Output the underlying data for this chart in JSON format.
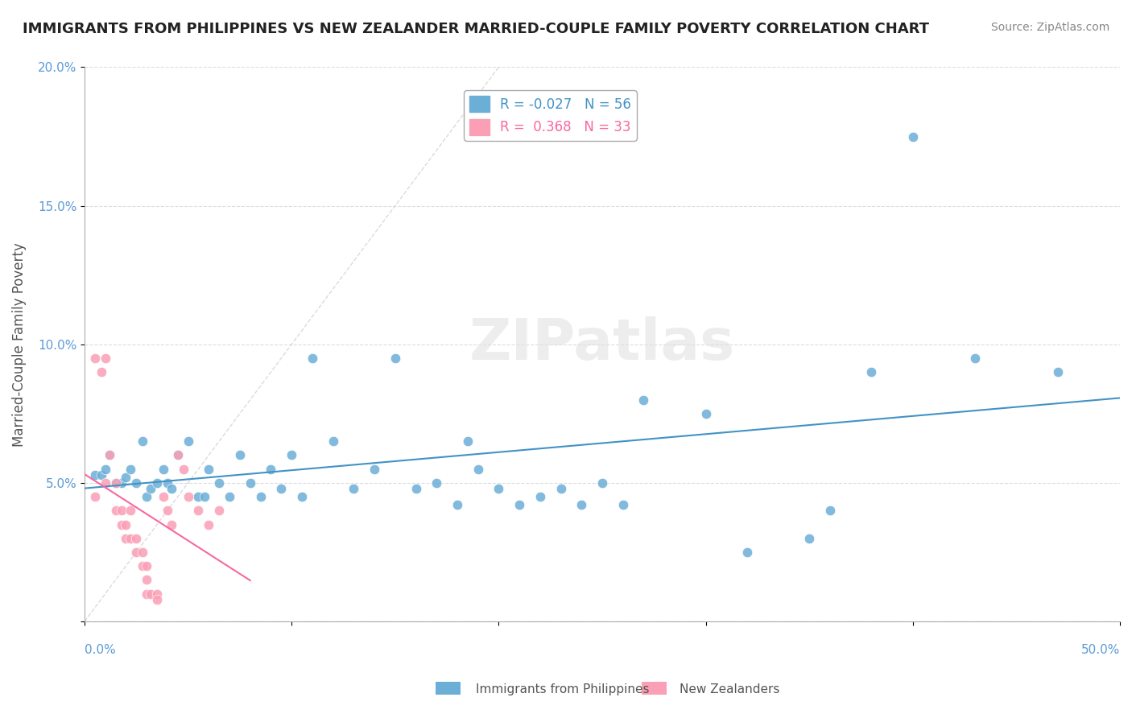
{
  "title": "IMMIGRANTS FROM PHILIPPINES VS NEW ZEALANDER MARRIED-COUPLE FAMILY POVERTY CORRELATION CHART",
  "source": "Source: ZipAtlas.com",
  "ylabel": "Married-Couple Family Poverty",
  "watermark": "ZIPatlas",
  "legend1_label": "Immigrants from Philippines",
  "legend2_label": "New Zealanders",
  "R1": "-0.027",
  "N1": "56",
  "R2": "0.368",
  "N2": "33",
  "blue_color": "#6baed6",
  "pink_color": "#fa9fb5",
  "blue_line_color": "#4292c6",
  "pink_line_color": "#f768a1",
  "blue_scatter": [
    [
      0.005,
      0.053
    ],
    [
      0.008,
      0.053
    ],
    [
      0.01,
      0.055
    ],
    [
      0.012,
      0.06
    ],
    [
      0.015,
      0.05
    ],
    [
      0.018,
      0.05
    ],
    [
      0.02,
      0.052
    ],
    [
      0.022,
      0.055
    ],
    [
      0.025,
      0.05
    ],
    [
      0.028,
      0.065
    ],
    [
      0.03,
      0.045
    ],
    [
      0.032,
      0.048
    ],
    [
      0.035,
      0.05
    ],
    [
      0.038,
      0.055
    ],
    [
      0.04,
      0.05
    ],
    [
      0.042,
      0.048
    ],
    [
      0.045,
      0.06
    ],
    [
      0.05,
      0.065
    ],
    [
      0.055,
      0.045
    ],
    [
      0.058,
      0.045
    ],
    [
      0.06,
      0.055
    ],
    [
      0.065,
      0.05
    ],
    [
      0.07,
      0.045
    ],
    [
      0.075,
      0.06
    ],
    [
      0.08,
      0.05
    ],
    [
      0.085,
      0.045
    ],
    [
      0.09,
      0.055
    ],
    [
      0.095,
      0.048
    ],
    [
      0.1,
      0.06
    ],
    [
      0.105,
      0.045
    ],
    [
      0.11,
      0.095
    ],
    [
      0.12,
      0.065
    ],
    [
      0.13,
      0.048
    ],
    [
      0.14,
      0.055
    ],
    [
      0.15,
      0.095
    ],
    [
      0.16,
      0.048
    ],
    [
      0.17,
      0.05
    ],
    [
      0.18,
      0.042
    ],
    [
      0.185,
      0.065
    ],
    [
      0.19,
      0.055
    ],
    [
      0.2,
      0.048
    ],
    [
      0.21,
      0.042
    ],
    [
      0.22,
      0.045
    ],
    [
      0.23,
      0.048
    ],
    [
      0.24,
      0.042
    ],
    [
      0.25,
      0.05
    ],
    [
      0.26,
      0.042
    ],
    [
      0.27,
      0.08
    ],
    [
      0.3,
      0.075
    ],
    [
      0.32,
      0.025
    ],
    [
      0.35,
      0.03
    ],
    [
      0.36,
      0.04
    ],
    [
      0.38,
      0.09
    ],
    [
      0.4,
      0.175
    ],
    [
      0.43,
      0.095
    ],
    [
      0.47,
      0.09
    ]
  ],
  "pink_scatter": [
    [
      0.005,
      0.095
    ],
    [
      0.008,
      0.09
    ],
    [
      0.01,
      0.095
    ],
    [
      0.012,
      0.06
    ],
    [
      0.015,
      0.05
    ],
    [
      0.015,
      0.04
    ],
    [
      0.018,
      0.04
    ],
    [
      0.018,
      0.035
    ],
    [
      0.02,
      0.035
    ],
    [
      0.02,
      0.03
    ],
    [
      0.022,
      0.04
    ],
    [
      0.022,
      0.03
    ],
    [
      0.025,
      0.03
    ],
    [
      0.025,
      0.025
    ],
    [
      0.028,
      0.025
    ],
    [
      0.028,
      0.02
    ],
    [
      0.03,
      0.02
    ],
    [
      0.03,
      0.015
    ],
    [
      0.03,
      0.01
    ],
    [
      0.032,
      0.01
    ],
    [
      0.035,
      0.01
    ],
    [
      0.035,
      0.008
    ],
    [
      0.038,
      0.045
    ],
    [
      0.04,
      0.04
    ],
    [
      0.042,
      0.035
    ],
    [
      0.045,
      0.06
    ],
    [
      0.048,
      0.055
    ],
    [
      0.05,
      0.045
    ],
    [
      0.055,
      0.04
    ],
    [
      0.06,
      0.035
    ],
    [
      0.065,
      0.04
    ],
    [
      0.005,
      0.045
    ],
    [
      0.01,
      0.05
    ]
  ],
  "xlim": [
    0.0,
    0.5
  ],
  "ylim": [
    0.0,
    0.2
  ],
  "yticks": [
    0.0,
    0.05,
    0.1,
    0.15,
    0.2
  ],
  "ytick_labels": [
    "",
    "5.0%",
    "10.0%",
    "15.0%",
    "20.0%"
  ],
  "background_color": "#ffffff",
  "grid_color": "#dddddd"
}
